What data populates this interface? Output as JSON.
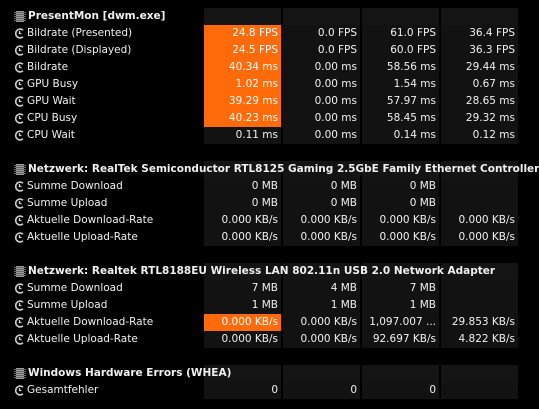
{
  "colors": {
    "highlight": "#ff6a0a",
    "background": "#000000",
    "text": "#f0f0f0"
  },
  "groups": [
    {
      "title": "PresentMon [dwm.exe]",
      "icon": "chip-icon",
      "rows": [
        {
          "label": "Bildrate (Presented)",
          "values": [
            "24.8 FPS",
            "0.0 FPS",
            "61.0 FPS",
            "36.4 FPS"
          ],
          "highlight": [
            true,
            false,
            false,
            false
          ]
        },
        {
          "label": "Bildrate (Displayed)",
          "values": [
            "24.5 FPS",
            "0.0 FPS",
            "60.0 FPS",
            "36.3 FPS"
          ],
          "highlight": [
            true,
            false,
            false,
            false
          ]
        },
        {
          "label": "Bildrate",
          "values": [
            "40.34 ms",
            "0.00 ms",
            "58.56 ms",
            "29.44 ms"
          ],
          "highlight": [
            true,
            false,
            false,
            false
          ]
        },
        {
          "label": "GPU Busy",
          "values": [
            "1.02 ms",
            "0.00 ms",
            "1.54 ms",
            "0.67 ms"
          ],
          "highlight": [
            true,
            false,
            false,
            false
          ]
        },
        {
          "label": "GPU Wait",
          "values": [
            "39.29 ms",
            "0.00 ms",
            "57.97 ms",
            "28.65 ms"
          ],
          "highlight": [
            true,
            false,
            false,
            false
          ]
        },
        {
          "label": "CPU Busy",
          "values": [
            "40.23 ms",
            "0.00 ms",
            "58.45 ms",
            "29.32 ms"
          ],
          "highlight": [
            true,
            false,
            false,
            false
          ]
        },
        {
          "label": "CPU Wait",
          "values": [
            "0.11 ms",
            "0.00 ms",
            "0.14 ms",
            "0.12 ms"
          ],
          "highlight": [
            false,
            false,
            false,
            false
          ]
        }
      ]
    },
    {
      "title": "Netzwerk: RealTek Semiconductor RTL8125 Gaming 2.5GbE Family Ethernet Controller",
      "icon": "chip-icon",
      "rows": [
        {
          "label": "Summe Download",
          "values": [
            "0 MB",
            "0 MB",
            "0 MB",
            ""
          ],
          "highlight": [
            false,
            false,
            false,
            false
          ]
        },
        {
          "label": "Summe Upload",
          "values": [
            "0 MB",
            "0 MB",
            "0 MB",
            ""
          ],
          "highlight": [
            false,
            false,
            false,
            false
          ]
        },
        {
          "label": "Aktuelle Download-Rate",
          "values": [
            "0.000 KB/s",
            "0.000 KB/s",
            "0.000 KB/s",
            "0.000 KB/s"
          ],
          "highlight": [
            false,
            false,
            false,
            false
          ]
        },
        {
          "label": "Aktuelle Upload-Rate",
          "values": [
            "0.000 KB/s",
            "0.000 KB/s",
            "0.000 KB/s",
            "0.000 KB/s"
          ],
          "highlight": [
            false,
            false,
            false,
            false
          ]
        }
      ]
    },
    {
      "title": "Netzwerk: Realtek RTL8188EU Wireless LAN 802.11n USB 2.0 Network Adapter",
      "icon": "chip-icon",
      "rows": [
        {
          "label": "Summe Download",
          "values": [
            "7 MB",
            "4 MB",
            "7 MB",
            ""
          ],
          "highlight": [
            false,
            false,
            false,
            false
          ]
        },
        {
          "label": "Summe Upload",
          "values": [
            "1 MB",
            "1 MB",
            "1 MB",
            ""
          ],
          "highlight": [
            false,
            false,
            false,
            false
          ]
        },
        {
          "label": "Aktuelle Download-Rate",
          "values": [
            "0.000 KB/s",
            "0.000 KB/s",
            "1,097.007 ...",
            "29.853 KB/s"
          ],
          "highlight": [
            true,
            false,
            false,
            false
          ]
        },
        {
          "label": "Aktuelle Upload-Rate",
          "values": [
            "0.000 KB/s",
            "0.000 KB/s",
            "92.697 KB/s",
            "4.822 KB/s"
          ],
          "highlight": [
            false,
            false,
            false,
            false
          ]
        }
      ]
    },
    {
      "title": "Windows Hardware Errors (WHEA)",
      "icon": "chip-icon",
      "rows": [
        {
          "label": "Gesamtfehler",
          "values": [
            "0",
            "0",
            "0",
            ""
          ],
          "highlight": [
            false,
            false,
            false,
            false
          ]
        }
      ]
    }
  ]
}
